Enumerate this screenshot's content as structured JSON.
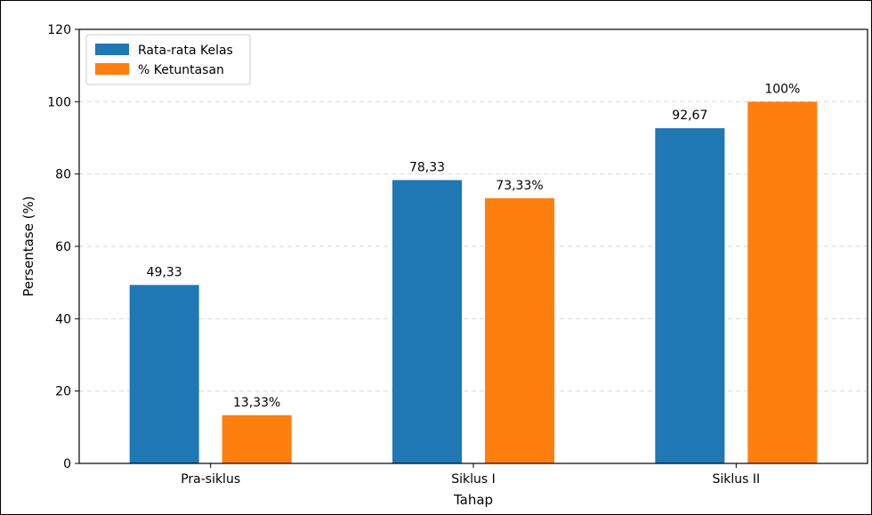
{
  "chart_data": {
    "type": "bar",
    "categories": [
      "Pra-siklus",
      "Siklus I",
      "Siklus II"
    ],
    "series": [
      {
        "name": "Rata-rata Kelas",
        "values": [
          49.33,
          78.33,
          92.67
        ],
        "labels": [
          "49,33",
          "78,33",
          "92,67"
        ],
        "color": "#1f77b4"
      },
      {
        "name": "% Ketuntasan",
        "values": [
          13.33,
          73.33,
          100
        ],
        "labels": [
          "13,33%",
          "73,33%",
          "100%"
        ],
        "color": "#ff7f0e"
      }
    ],
    "xlabel": "Tahap",
    "ylabel": "Persentase (%)",
    "ylim": [
      0,
      120
    ],
    "yticks": [
      0,
      20,
      40,
      60,
      80,
      100,
      120
    ],
    "grid": true,
    "legend_position": "top-left"
  }
}
